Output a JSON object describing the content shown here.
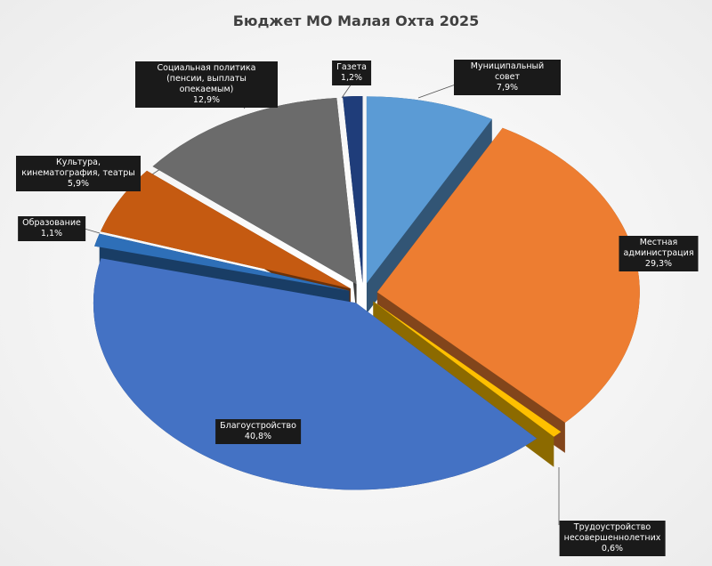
{
  "chart_data": {
    "type": "pie",
    "title": "Бюджет МО Малая Охта 2025",
    "categories": [
      "Муниципальный совет",
      "Местная администрация",
      "Трудоустройство несовершеннолетних",
      "Благоустройство",
      "Образование",
      "Культура, кинематография, театры",
      "Социальная политика (пенсии, выплаты опекаемым)",
      "Газета"
    ],
    "values": [
      7.9,
      29.3,
      0.6,
      40.8,
      1.1,
      5.9,
      12.9,
      1.2
    ],
    "value_labels": [
      "7,9%",
      "29,3%",
      "0,6%",
      "40,8%",
      "1,1%",
      "5,9%",
      "12,9%",
      "1,2%"
    ],
    "colors": [
      "#5b9bd5",
      "#ed7d31",
      "#ffc000",
      "#4472c4",
      "#2e6fb8",
      "#c55a11",
      "#6b6b6b",
      "#1f3d7a"
    ]
  }
}
